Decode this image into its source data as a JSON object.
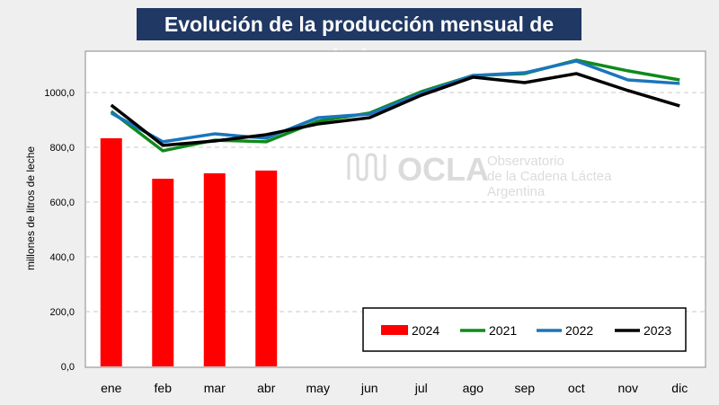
{
  "chart_data": {
    "type": "bar+line",
    "title": "Evolución de la producción mensual de leche",
    "xlabel": "",
    "ylabel": "millones de litros de leche",
    "ylim": [
      0,
      1200
    ],
    "yticks": [
      "0,0",
      "200,0",
      "400,0",
      "600,0",
      "800,0",
      "1000,0"
    ],
    "ytick_values": [
      0,
      200,
      400,
      600,
      800,
      1000
    ],
    "grid": true,
    "legend_position": "bottom-right",
    "categories": [
      "ene",
      "feb",
      "mar",
      "abr",
      "may",
      "jun",
      "jul",
      "ago",
      "sep",
      "oct",
      "nov",
      "dic"
    ],
    "bars": {
      "name": "2024",
      "color": "#ff0000",
      "values": [
        833,
        685,
        705,
        715
      ]
    },
    "series": [
      {
        "name": "2021",
        "color": "#0f8a1a",
        "values": [
          931,
          787,
          826,
          820,
          895,
          925,
          1003,
          1062,
          1069,
          1118,
          1079,
          1046
        ]
      },
      {
        "name": "2022",
        "color": "#1a75bc",
        "values": [
          925,
          820,
          849,
          833,
          908,
          921,
          997,
          1062,
          1072,
          1115,
          1046,
          1033
        ]
      },
      {
        "name": "2023",
        "color": "#000000",
        "values": [
          954,
          807,
          823,
          846,
          885,
          908,
          990,
          1056,
          1036,
          1069,
          1007,
          951
        ]
      }
    ]
  },
  "watermark": {
    "logo": "OCLA",
    "line1": "Observatorio",
    "line2": "de la Cadena Láctea",
    "line3": "Argentina"
  }
}
